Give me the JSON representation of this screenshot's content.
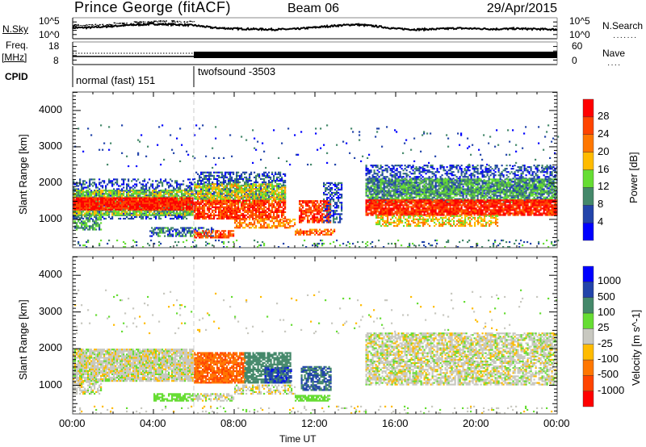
{
  "header": {
    "title": "Prince George (fitACF)",
    "beam": "Beam 06",
    "date": "29/Apr/2015"
  },
  "noise": {
    "left_label": "N.Sky",
    "right_label": "N.Search",
    "left_ticks": [
      "10^5",
      "10^0"
    ],
    "right_ticks": [
      "10^5",
      "10^0"
    ]
  },
  "freq": {
    "left_label_1": "Freq.",
    "left_label_2": "[MHz]",
    "left_ticks": [
      "18",
      "8"
    ],
    "right_label": "Nave",
    "right_ticks": [
      "60",
      "0"
    ]
  },
  "cpid": {
    "label": "CPID",
    "modes": [
      {
        "name": "normal (fast) 151",
        "start_h": 0
      },
      {
        "name": "twofsound -3503",
        "start_h": 6
      }
    ]
  },
  "chart_data": [
    {
      "type": "heatmap",
      "title": "Power",
      "colorbar_label": "Power [dB]",
      "colorbar_ticks": [
        "28",
        "24",
        "20",
        "16",
        "12",
        "8",
        "4"
      ],
      "colors": [
        "#0000ff",
        "#2244aa",
        "#44886a",
        "#66dd33",
        "#ffbb00",
        "#ff7700",
        "#ff4400",
        "#ff0000"
      ],
      "bins": [
        0,
        4,
        8,
        12,
        16,
        20,
        24,
        28,
        32
      ],
      "xlabel": "Time UT",
      "ylabel": "Slant Range [km]",
      "xlim": [
        0,
        24
      ],
      "ylim": [
        220,
        4510
      ],
      "xticks": [
        "00:00",
        "04:00",
        "08:00",
        "12:00",
        "16:00",
        "20:00",
        "00:00"
      ],
      "yticks": [
        "1000",
        "2000",
        "3000",
        "4000"
      ],
      "regions": [
        {
          "t": [
            0,
            6
          ],
          "r": [
            1000,
            2100
          ],
          "val": 6,
          "d": 0.45
        },
        {
          "t": [
            0,
            6
          ],
          "r": [
            1100,
            1800
          ],
          "val": 14,
          "d": 0.8
        },
        {
          "t": [
            0,
            6
          ],
          "r": [
            1250,
            1600
          ],
          "val": 29,
          "d": 0.95
        },
        {
          "t": [
            0,
            1.4
          ],
          "r": [
            700,
            1100
          ],
          "val": 11,
          "d": 0.6
        },
        {
          "t": [
            3.8,
            7
          ],
          "r": [
            520,
            760
          ],
          "val": 8,
          "d": 0.6
        },
        {
          "t": [
            6,
            8
          ],
          "r": [
            480,
            700
          ],
          "val": 26,
          "d": 0.7
        },
        {
          "t": [
            6,
            10.5
          ],
          "r": [
            1550,
            2300
          ],
          "val": 7,
          "d": 0.55
        },
        {
          "t": [
            6,
            10.5
          ],
          "r": [
            1450,
            1950
          ],
          "val": 16,
          "d": 0.7
        },
        {
          "t": [
            6,
            10.5
          ],
          "r": [
            1000,
            1500
          ],
          "val": 27,
          "d": 0.8
        },
        {
          "t": [
            8,
            11
          ],
          "r": [
            750,
            1000
          ],
          "val": 21,
          "d": 0.6
        },
        {
          "t": [
            11.2,
            12.8
          ],
          "r": [
            900,
            1500
          ],
          "val": 27,
          "d": 0.7
        },
        {
          "t": [
            11,
            13
          ],
          "r": [
            560,
            700
          ],
          "val": 24,
          "d": 0.7
        },
        {
          "t": [
            12.4,
            13.3
          ],
          "r": [
            900,
            2000
          ],
          "val": 6,
          "d": 0.5
        },
        {
          "t": [
            14.5,
            24
          ],
          "r": [
            1700,
            2500
          ],
          "val": 6,
          "d": 0.5
        },
        {
          "t": [
            14.5,
            24
          ],
          "r": [
            1450,
            2100
          ],
          "val": 11,
          "d": 0.75
        },
        {
          "t": [
            14.5,
            24
          ],
          "r": [
            1100,
            1550
          ],
          "val": 28,
          "d": 0.9
        },
        {
          "t": [
            15,
            21
          ],
          "r": [
            800,
            1100
          ],
          "val": 18,
          "d": 0.55
        },
        {
          "t": [
            0,
            24
          ],
          "r": [
            220,
            420
          ],
          "val": 10,
          "d": 0.12
        },
        {
          "t": [
            0,
            24
          ],
          "r": [
            2400,
            3600
          ],
          "val": 6,
          "d": 0.02
        }
      ]
    },
    {
      "type": "heatmap",
      "title": "Velocity",
      "colorbar_label": "Velocity [m s^-1]",
      "colorbar_ticks": [
        "1000",
        "500",
        "100",
        "25",
        "-25",
        "-100",
        "-500",
        "-1000"
      ],
      "colors": [
        "#ff0000",
        "#ff4400",
        "#ff7700",
        "#ffbb00",
        "#c8c8c0",
        "#66dd33",
        "#44886a",
        "#2244aa",
        "#0000ff"
      ],
      "bins": [
        -9999,
        -1000,
        -500,
        -100,
        -25,
        25,
        100,
        500,
        1000,
        9999
      ],
      "xlabel": "Time UT",
      "ylabel": "Slant Range [km]",
      "xlim": [
        0,
        24
      ],
      "ylim": [
        220,
        4510
      ],
      "xticks": [
        "00:00",
        "04:00",
        "08:00",
        "12:00",
        "16:00",
        "20:00",
        "00:00"
      ],
      "yticks": [
        "1000",
        "2000",
        "3000",
        "4000"
      ],
      "regions": [
        {
          "t": [
            0,
            6
          ],
          "r": [
            1100,
            2000
          ],
          "val": 0,
          "d": 0.9
        },
        {
          "t": [
            0,
            1.4
          ],
          "r": [
            750,
            1100
          ],
          "val": 0,
          "d": 0.6
        },
        {
          "t": [
            4,
            6
          ],
          "r": [
            560,
            760
          ],
          "val": 60,
          "d": 0.8
        },
        {
          "t": [
            6,
            8
          ],
          "r": [
            560,
            760
          ],
          "val": 0,
          "d": 0.6
        },
        {
          "t": [
            6,
            8.5
          ],
          "r": [
            1050,
            1900
          ],
          "val": -450,
          "d": 0.85
        },
        {
          "t": [
            8.5,
            10.8
          ],
          "r": [
            1050,
            1900
          ],
          "val": 300,
          "d": 0.8
        },
        {
          "t": [
            9.5,
            10.8
          ],
          "r": [
            1050,
            1500
          ],
          "val": 800,
          "d": 0.6
        },
        {
          "t": [
            8,
            11
          ],
          "r": [
            750,
            1000
          ],
          "val": 0,
          "d": 0.5
        },
        {
          "t": [
            11.3,
            12.8
          ],
          "r": [
            850,
            1500
          ],
          "val": 500,
          "d": 0.75
        },
        {
          "t": [
            11,
            12.7
          ],
          "r": [
            560,
            700
          ],
          "val": 60,
          "d": 0.8
        },
        {
          "t": [
            14.5,
            24
          ],
          "r": [
            1000,
            2400
          ],
          "val": 0,
          "d": 0.7
        },
        {
          "t": [
            0,
            24
          ],
          "r": [
            220,
            420
          ],
          "val": 0,
          "d": 0.1
        },
        {
          "t": [
            0,
            24
          ],
          "r": [
            2400,
            3600
          ],
          "val": 0,
          "d": 0.02
        }
      ]
    },
    {
      "type": "line",
      "title": "N.Sky",
      "ylim": [
        0,
        5
      ],
      "x": [
        0,
        1,
        2,
        3,
        4,
        5,
        6,
        7,
        8,
        9,
        10,
        11,
        12,
        13,
        14,
        15,
        16,
        17,
        18,
        19,
        20,
        21,
        22,
        23,
        24
      ],
      "values": [
        2.6,
        2.7,
        3.0,
        3.3,
        3.5,
        3.4,
        3.2,
        2.6,
        2.4,
        2.3,
        2.2,
        2.3,
        2.7,
        3.1,
        3.4,
        3.0,
        2.4,
        2.2,
        2.3,
        2.5,
        2.4,
        2.3,
        2.4,
        2.3,
        2.2
      ]
    }
  ]
}
